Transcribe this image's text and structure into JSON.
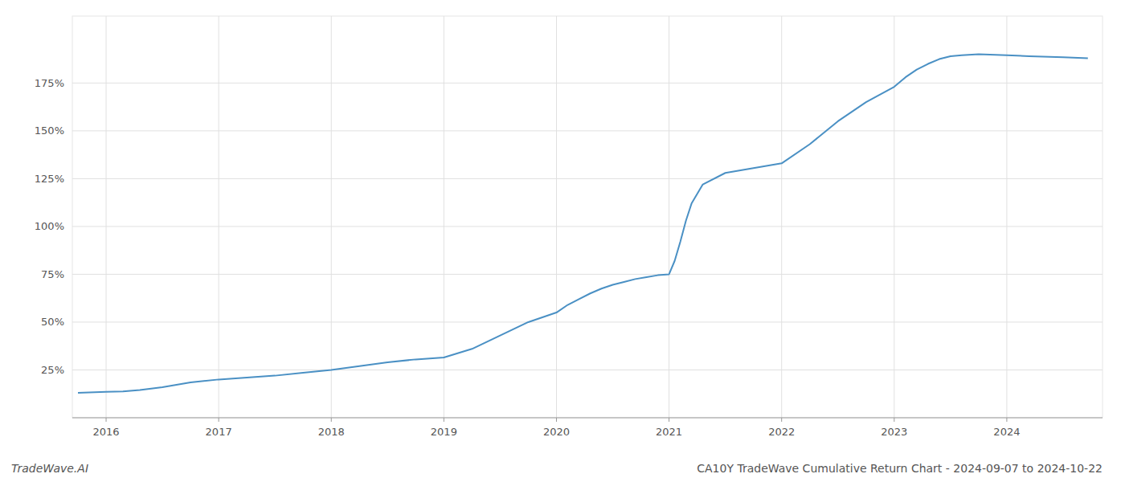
{
  "chart_data": {
    "type": "line",
    "title": "CA10Y TradeWave Cumulative Return Chart - 2024-09-07 to 2024-10-22",
    "annotations": [
      "TradeWave.AI"
    ],
    "color": "#4a90c4",
    "grid": true,
    "x": [
      2015.75,
      2016.0,
      2016.15,
      2016.3,
      2016.5,
      2016.75,
      2017.0,
      2017.25,
      2017.5,
      2017.75,
      2018.0,
      2018.25,
      2018.5,
      2018.75,
      2019.0,
      2019.25,
      2019.5,
      2019.75,
      2020.0,
      2020.1,
      2020.2,
      2020.3,
      2020.4,
      2020.5,
      2020.6,
      2020.7,
      2020.8,
      2020.9,
      2021.0,
      2021.05,
      2021.1,
      2021.15,
      2021.2,
      2021.3,
      2021.5,
      2021.75,
      2022.0,
      2022.25,
      2022.5,
      2022.75,
      2023.0,
      2023.1,
      2023.2,
      2023.3,
      2023.4,
      2023.5,
      2023.6,
      2023.75,
      2024.0,
      2024.2,
      2024.5,
      2024.72
    ],
    "values": [
      13.0,
      13.5,
      13.8,
      14.5,
      16.0,
      18.5,
      20.0,
      21.0,
      22.0,
      23.5,
      25.0,
      27.0,
      29.0,
      30.5,
      31.5,
      36.0,
      43.0,
      50.0,
      55.0,
      59.0,
      62.0,
      65.0,
      67.5,
      69.5,
      71.0,
      72.5,
      73.5,
      74.5,
      75.0,
      82.0,
      92.0,
      103.0,
      112.0,
      122.0,
      128.0,
      130.5,
      133.0,
      143.0,
      155.0,
      165.0,
      173.0,
      178.0,
      182.0,
      185.0,
      187.5,
      189.0,
      189.5,
      190.0,
      189.5,
      189.0,
      188.5,
      188.0
    ],
    "xlim": [
      2015.7,
      2024.85
    ],
    "ylim": [
      0,
      210
    ],
    "xticks": [
      2016,
      2017,
      2018,
      2019,
      2020,
      2021,
      2022,
      2023,
      2024
    ],
    "yticks": [
      {
        "value": 25,
        "label": "25%"
      },
      {
        "value": 50,
        "label": "50%"
      },
      {
        "value": 75,
        "label": "75%"
      },
      {
        "value": 100,
        "label": "100%"
      },
      {
        "value": 125,
        "label": "125%"
      },
      {
        "value": 150,
        "label": "150%"
      },
      {
        "value": 175,
        "label": "175%"
      }
    ]
  }
}
